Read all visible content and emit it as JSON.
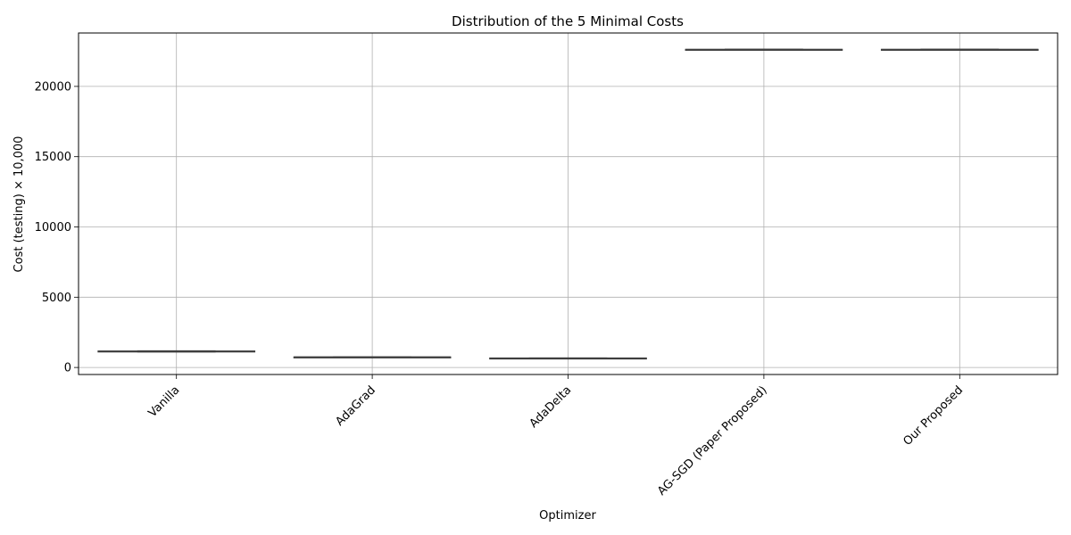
{
  "chart_data": {
    "type": "box",
    "title": "Distribution of the 5 Minimal Costs",
    "xlabel": "Optimizer",
    "ylabel": "Cost (testing) × 10,000",
    "categories": [
      "Vanilla",
      "AdaGrad",
      "AdaDelta",
      "AG-SGD (Paper Proposed)",
      "Our Proposed"
    ],
    "boxes": [
      {
        "category": "Vanilla",
        "min": 1110,
        "q1": 1120,
        "median": 1150,
        "q3": 1170,
        "max": 1185
      },
      {
        "category": "AdaGrad",
        "min": 740,
        "q1": 742,
        "median": 745,
        "q3": 748,
        "max": 750
      },
      {
        "category": "AdaDelta",
        "min": 665,
        "q1": 668,
        "median": 670,
        "q3": 672,
        "max": 675
      },
      {
        "category": "AG-SGD (Paper Proposed)",
        "min": 22620,
        "q1": 22625,
        "median": 22630,
        "q3": 22635,
        "max": 22640
      },
      {
        "category": "Our Proposed",
        "min": 22620,
        "q1": 22625,
        "median": 22630,
        "q3": 22635,
        "max": 22640
      }
    ],
    "yticks": [
      0,
      5000,
      10000,
      15000,
      20000
    ],
    "ylim": [
      -500,
      23800
    ],
    "grid": true,
    "colors": {
      "box_line": "#3f3f3f",
      "grid": "#b0b0b0",
      "axis": "#000000"
    }
  }
}
